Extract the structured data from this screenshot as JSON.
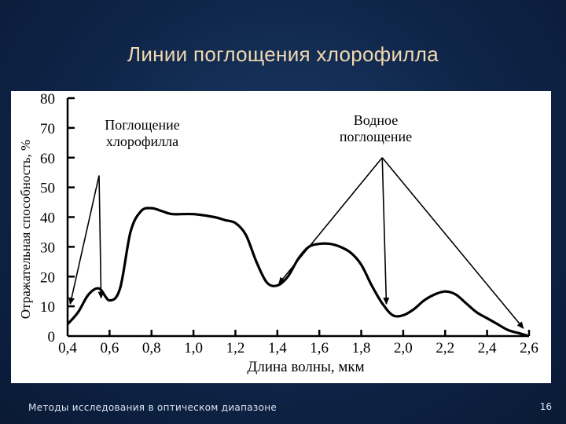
{
  "slide": {
    "title": "Линии поглощения хлорофилла",
    "footer": "Методы исследования в оптическом диапазоне",
    "page_number": "16",
    "title_color": "#f2d9b0",
    "background_color": "#0e2447"
  },
  "chart_data": {
    "type": "line",
    "title": "",
    "xlabel": "Длина волны, мкм",
    "ylabel": "Отражательная способность, %",
    "xlim": [
      0.4,
      2.6
    ],
    "ylim": [
      0,
      80
    ],
    "x_ticks": [
      0.4,
      0.6,
      0.8,
      1.0,
      1.2,
      1.4,
      1.6,
      1.8,
      2.0,
      2.2,
      2.4,
      2.6
    ],
    "x_tick_labels": [
      "0,4",
      "0,6",
      "0,8",
      "1,0",
      "1,2",
      "1,4",
      "1,6",
      "1,8",
      "2,0",
      "2,2",
      "2,4",
      "2,6"
    ],
    "y_ticks": [
      0,
      10,
      20,
      30,
      40,
      50,
      60,
      70,
      80
    ],
    "y_tick_labels": [
      "0",
      "10",
      "20",
      "30",
      "40",
      "50",
      "60",
      "70",
      "80"
    ],
    "grid": false,
    "series": [
      {
        "x": [
          0.4,
          0.45,
          0.5,
          0.55,
          0.6,
          0.65,
          0.7,
          0.75,
          0.8,
          0.85,
          0.9,
          1.0,
          1.1,
          1.15,
          1.2,
          1.25,
          1.3,
          1.35,
          1.4,
          1.45,
          1.5,
          1.55,
          1.6,
          1.65,
          1.7,
          1.75,
          1.8,
          1.85,
          1.9,
          1.95,
          2.0,
          2.05,
          2.1,
          2.15,
          2.2,
          2.25,
          2.3,
          2.35,
          2.4,
          2.45,
          2.5,
          2.55,
          2.6
        ],
        "y": [
          4,
          8,
          14,
          16,
          12,
          16,
          35,
          42,
          43,
          42,
          41,
          41,
          40,
          39,
          38,
          34,
          25,
          18,
          17,
          20,
          26,
          30,
          31,
          31,
          30,
          28,
          24,
          17,
          11,
          7,
          7,
          9,
          12,
          14,
          15,
          14,
          11,
          8,
          6,
          4,
          2,
          1,
          0
        ]
      }
    ],
    "annotations": [
      {
        "text_lines": [
          "Поглощение",
          "хлорофилла"
        ],
        "targets": [
          [
            0.41,
            10
          ],
          [
            0.56,
            12
          ]
        ],
        "source": [
          0.55,
          54
        ]
      },
      {
        "text_lines": [
          "Водное",
          "поглощение"
        ],
        "targets": [
          [
            1.4,
            17
          ],
          [
            1.92,
            10
          ],
          [
            2.58,
            2
          ]
        ],
        "source": [
          1.9,
          60
        ]
      }
    ],
    "line_color": "#000000"
  }
}
